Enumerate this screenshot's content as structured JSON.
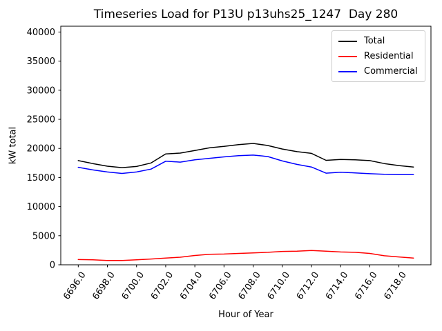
{
  "chart_data": {
    "type": "line",
    "title": "Timeseries Load for P13U p13uhs25_1247  Day 280",
    "xlabel": "Hour of Year",
    "ylabel": "kW total",
    "x": [
      6696,
      6697,
      6698,
      6699,
      6700,
      6701,
      6702,
      6703,
      6704,
      6705,
      6706,
      6707,
      6708,
      6709,
      6710,
      6711,
      6712,
      6713,
      6714,
      6715,
      6716,
      6717,
      6718,
      6719
    ],
    "series": [
      {
        "name": "Total",
        "color": "#000000",
        "values": [
          17900,
          17400,
          16950,
          16700,
          16900,
          17500,
          19050,
          19200,
          19650,
          20100,
          20350,
          20650,
          20850,
          20500,
          19900,
          19450,
          19150,
          17950,
          18100,
          18050,
          17900,
          17400,
          17050,
          16800
        ]
      },
      {
        "name": "Residential",
        "color": "#ff0000",
        "values": [
          900,
          850,
          750,
          750,
          850,
          1000,
          1150,
          1300,
          1600,
          1800,
          1850,
          1950,
          2050,
          2150,
          2300,
          2350,
          2450,
          2350,
          2200,
          2150,
          1950,
          1550,
          1350,
          1150
        ]
      },
      {
        "name": "Commercial",
        "color": "#0000ff",
        "values": [
          16750,
          16300,
          15950,
          15700,
          15950,
          16450,
          17800,
          17650,
          18050,
          18300,
          18550,
          18750,
          18850,
          18600,
          17850,
          17250,
          16800,
          15750,
          15900,
          15800,
          15650,
          15550,
          15500,
          15500
        ]
      }
    ],
    "xlim": [
      6694.8,
      6720.2
    ],
    "ylim": [
      0,
      41000
    ],
    "xtick_labels": [
      "6696.0",
      "6698.0",
      "6700.0",
      "6702.0",
      "6704.0",
      "6706.0",
      "6708.0",
      "6710.0",
      "6712.0",
      "6714.0",
      "6716.0",
      "6718.0"
    ],
    "ytick_labels": [
      "0",
      "5000",
      "10000",
      "15000",
      "20000",
      "25000",
      "30000",
      "35000",
      "40000"
    ],
    "grid": false,
    "legend_position": "upper right"
  }
}
